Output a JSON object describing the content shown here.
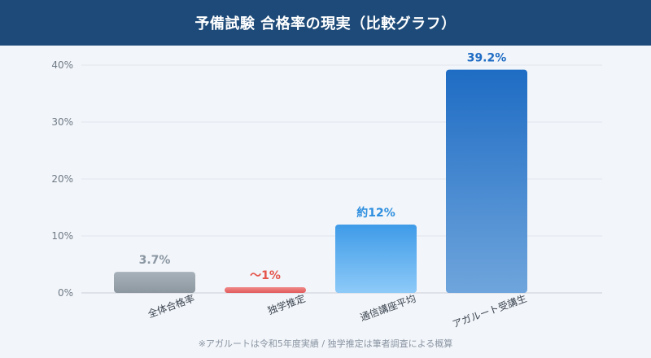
{
  "header": {
    "title": "予備試験 合格率の現実（比較グラフ）"
  },
  "footnote": "※アガルートは令和5年度実績 / 独学推定は筆者調査による概算",
  "chart_data": {
    "type": "bar",
    "categories": [
      "全体合格率",
      "独学推定",
      "通信講座平均",
      "アガルート受講生"
    ],
    "values": [
      3.7,
      1,
      12,
      39.2
    ],
    "value_labels": [
      "3.7%",
      "〜1%",
      "約12%",
      "39.2%"
    ],
    "yticks": [
      0,
      10,
      20,
      30,
      40
    ],
    "ytick_labels": [
      "0%",
      "10%",
      "20%",
      "30%",
      "40%"
    ],
    "ylim": [
      0,
      40
    ],
    "grid": true,
    "colors": [
      {
        "top": "#a7b2bb",
        "bottom": "#8c979f",
        "label": "#8a96a2"
      },
      {
        "top": "#f08a8a",
        "bottom": "#e25a5a",
        "label": "#e5534b"
      },
      {
        "top": "#3f9be8",
        "bottom": "#8dcaf8",
        "label": "#2f8fe0"
      },
      {
        "top": "#1e6cc4",
        "bottom": "#6fa5dc",
        "label": "#1e6cc4"
      }
    ]
  }
}
